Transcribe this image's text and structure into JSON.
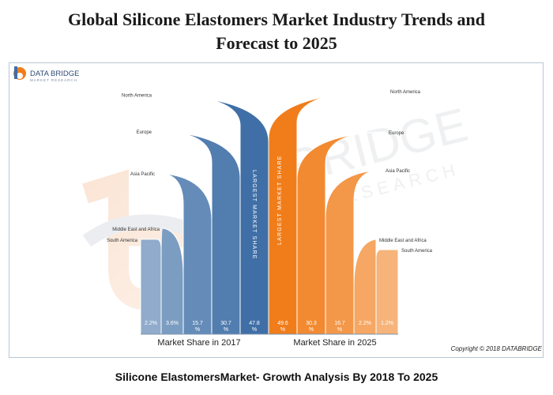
{
  "title_line1": "Global Silicone Elastomers Market Industry Trends and",
  "title_line2": "Forecast to 2025",
  "logo": {
    "name": "DATA BRIDGE",
    "tagline": "MARKET RESEARCH",
    "watermark_line1": "BRIDGE",
    "watermark_line2": "RESEARCH"
  },
  "copyright": "Copyright © 2018 DATABRIDGE",
  "caption": "Silicone ElastomersMarket- Growth Analysis By 2018 To 2025",
  "colors": {
    "blue": "#3f6fa6",
    "orange": "#f07d1a"
  },
  "chart_data": {
    "type": "bar",
    "categories": [
      "North America",
      "Europe",
      "Asia Pacific",
      "Middle East and Africa",
      "South America"
    ],
    "series": [
      {
        "name": "Market Share in 2017",
        "unit": "%",
        "labels": [
          "47.8 %",
          "30.7 %",
          "15.7 %",
          "3.6%",
          "2.2%"
        ],
        "values": [
          47.8,
          30.7,
          15.7,
          3.6,
          2.2
        ],
        "color": "#3f6fa6",
        "band_text": "LARGEST MARKET SHARE"
      },
      {
        "name": "Market Share in 2025",
        "unit": "%",
        "labels": [
          "49.6 %",
          "30.3 %",
          "16.7 %",
          "2.2%",
          "1.2%"
        ],
        "values": [
          49.6,
          30.3,
          16.7,
          2.2,
          1.2
        ],
        "color": "#f07d1a",
        "band_text": "LARGEST MARKET SHARE"
      }
    ]
  }
}
